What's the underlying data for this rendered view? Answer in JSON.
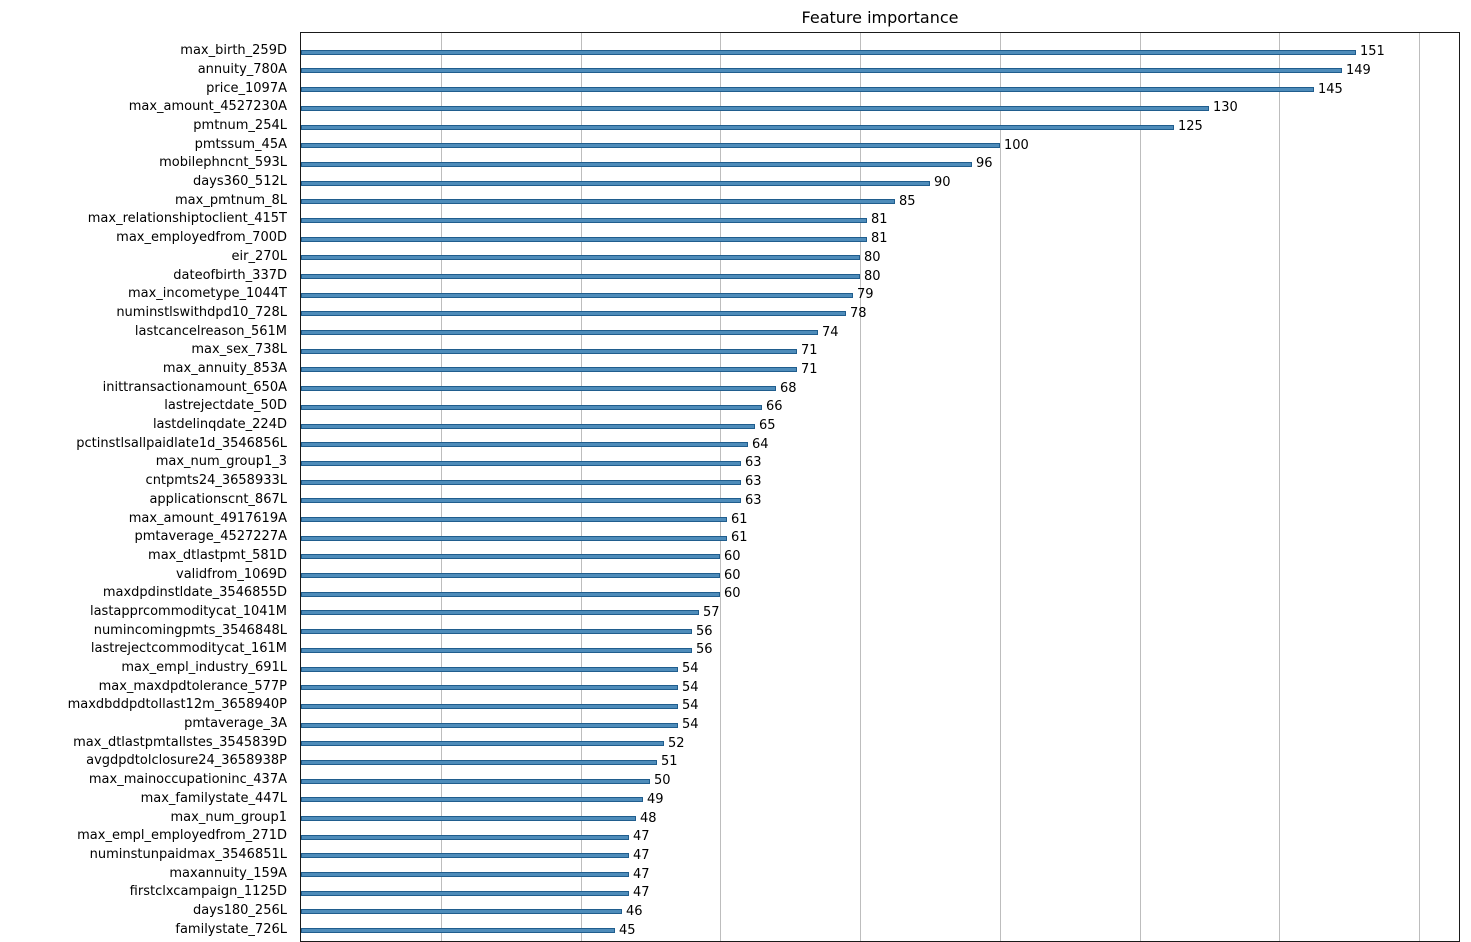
{
  "chart_data": {
    "type": "bar",
    "orientation": "horizontal",
    "title": "Feature importance",
    "xlabel": "",
    "ylabel": "",
    "xlim": [
      0,
      166
    ],
    "grid": true,
    "grid_step": 20,
    "legend": "none",
    "bar_color": "#4e8cba",
    "bar_edge_color": "#205d8d",
    "gridline_color": "#bdbdbd",
    "value_labels_shown": true,
    "categories": [
      "max_birth_259D",
      "annuity_780A",
      "price_1097A",
      "max_amount_4527230A",
      "pmtnum_254L",
      "pmtssum_45A",
      "mobilephncnt_593L",
      "days360_512L",
      "max_pmtnum_8L",
      "max_relationshiptoclient_415T",
      "max_employedfrom_700D",
      "eir_270L",
      "dateofbirth_337D",
      "max_incometype_1044T",
      "numinstlswithdpd10_728L",
      "lastcancelreason_561M",
      "max_sex_738L",
      "max_annuity_853A",
      "inittransactionamount_650A",
      "lastrejectdate_50D",
      "lastdelinqdate_224D",
      "pctinstlsallpaidlate1d_3546856L",
      "max_num_group1_3",
      "cntpmts24_3658933L",
      "applicationscnt_867L",
      "max_amount_4917619A",
      "pmtaverage_4527227A",
      "max_dtlastpmt_581D",
      "validfrom_1069D",
      "maxdpdinstldate_3546855D",
      "lastapprcommoditycat_1041M",
      "numincomingpmts_3546848L",
      "lastrejectcommoditycat_161M",
      "max_empl_industry_691L",
      "max_maxdpdtolerance_577P",
      "maxdbddpdtollast12m_3658940P",
      "pmtaverage_3A",
      "max_dtlastpmtallstes_3545839D",
      "avgdpdtolclosure24_3658938P",
      "max_mainoccupationinc_437A",
      "max_familystate_447L",
      "max_num_group1",
      "max_empl_employedfrom_271D",
      "numinstunpaidmax_3546851L",
      "maxannuity_159A",
      "firstclxcampaign_1125D",
      "days180_256L",
      "familystate_726L"
    ],
    "values": [
      151,
      149,
      145,
      130,
      125,
      100,
      96,
      90,
      85,
      81,
      81,
      80,
      80,
      79,
      78,
      74,
      71,
      71,
      68,
      66,
      65,
      64,
      63,
      63,
      63,
      61,
      61,
      60,
      60,
      60,
      57,
      56,
      56,
      54,
      54,
      54,
      54,
      52,
      51,
      50,
      49,
      48,
      47,
      47,
      47,
      47,
      46,
      45
    ]
  }
}
